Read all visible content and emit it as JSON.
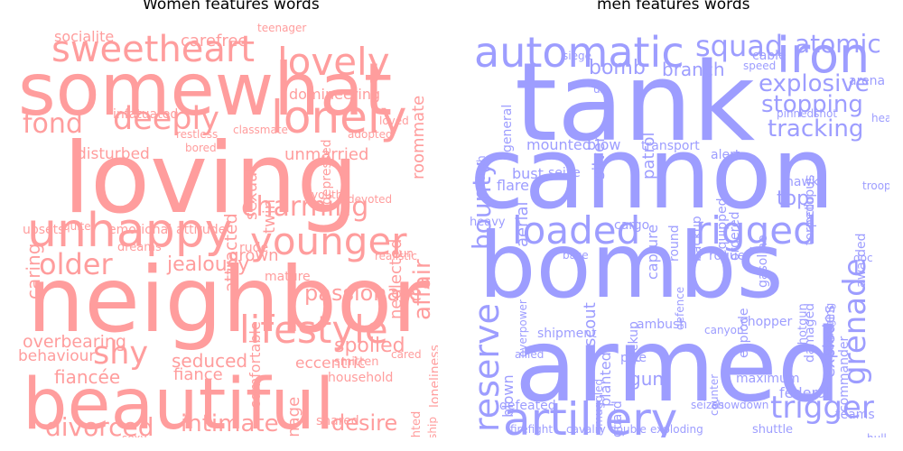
{
  "titles": {
    "women": "Women features words",
    "men": "men features words"
  },
  "colors": {
    "women": "#ff9d9d",
    "men": "#9d9dff"
  },
  "women_words": [
    "somewhat",
    "loving",
    "neighbor",
    "beautiful",
    "unhappy",
    "sweetheart",
    "lonely",
    "lovely",
    "younger",
    "deeply",
    "older",
    "shy",
    "lifestyle",
    "fond",
    "intimate",
    "desire",
    "charming",
    "divorced",
    "passionate",
    "caring",
    "affair",
    "carefree",
    "socialite",
    "roommate",
    "neglected",
    "jealousy",
    "grown",
    "seduced",
    "eccentric",
    "fiancée",
    "overbearing",
    "behaviour",
    "fiance",
    "shared",
    "spoiled",
    "teenage",
    "mature",
    "unmarried",
    "disturbed",
    "infatuated",
    "attracted",
    "sexual",
    "twin",
    "teenager",
    "domineering",
    "emotional",
    "attitude",
    "adopted",
    "dreams",
    "rude",
    "loneliness",
    "delighted",
    "courtship",
    "household",
    "smitten",
    "classmate",
    "depressed",
    "sexy",
    "upsets",
    "quite",
    "realistic",
    "restless",
    "bored",
    "loved",
    "nun",
    "cared",
    "comfortable",
    "youth",
    "devoted",
    "caring"
  ],
  "men_words": [
    "tank",
    "cannon",
    "bombs",
    "armed",
    "automatic",
    "iron",
    "artillery",
    "reserve",
    "loaded",
    "rigged",
    "grenade",
    "trigger",
    "bounty",
    "squad",
    "atomic",
    "explosive",
    "stopping",
    "tracking",
    "bomb",
    "branch",
    "aerial",
    "silver",
    "patrol",
    "mounted",
    "blow",
    "transport",
    "alert",
    "capture",
    "flare",
    "bust",
    "seize",
    "round",
    "backup",
    "equipped",
    "ordered",
    "hawk",
    "top",
    "torpedo",
    "octopus",
    "explodes",
    "gasoline",
    "heavy",
    "cargo",
    "base",
    "pickup",
    "scout",
    "ambush",
    "shipment",
    "allied",
    "planted",
    "blown",
    "gun",
    "pike",
    "chopper",
    "canyon",
    "damaged",
    "explode",
    "defeated",
    "smuggled",
    "guard",
    "federal",
    "teams",
    "firefight",
    "cavalry",
    "double",
    "exploding",
    "showdown",
    "seizes",
    "counter",
    "shuttle",
    "hull",
    "shotgun",
    "arena",
    "doc",
    "rogue",
    "defence",
    "overpower",
    "pinnedshot",
    "head",
    "cable",
    "speed",
    "siege",
    "troops",
    "us",
    "general",
    "trench",
    "damaging",
    "awarded",
    "commander",
    "maximum"
  ]
}
